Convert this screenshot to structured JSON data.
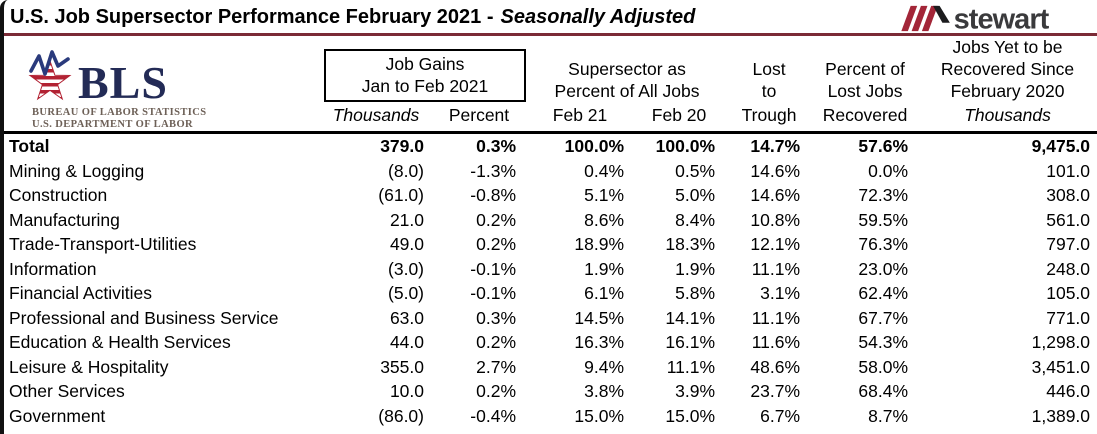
{
  "page": {
    "title_main": "U.S. Job Supersector Performance February 2021 -",
    "title_italic": "Seasonally Adjusted"
  },
  "stewart_logo": {
    "wordmark": "stewart"
  },
  "bls_logo": {
    "acronym": "BLS",
    "dept_line1": "BUREAU OF LABOR STATISTICS",
    "dept_line2": "U.S. DEPARTMENT OF LABOR"
  },
  "colors": {
    "title_rule_maroon": "#7b2a36",
    "stewart_red": "#a32638",
    "stewart_text": "#3a3a3c",
    "bls_navy": "#232b56",
    "bls_star_red": "#b22233",
    "bls_zigzag_blue": "#2a3a7c",
    "table_text": "#000000"
  },
  "table": {
    "group_headers": {
      "job_gains_line1": "Job Gains",
      "job_gains_line2": "Jan to Feb 2021",
      "supersector_line1": "Supersector as",
      "supersector_line2": "Percent of All Jobs",
      "lost_line1": "Lost",
      "lost_line2": "to",
      "pct_recovered_line1": "Percent of",
      "pct_recovered_line2": "Lost Jobs",
      "yet_line1": "Jobs Yet to be",
      "yet_line2": "Recovered Since",
      "yet_line3": "February 2020"
    },
    "sub_headers": {
      "thousands": "Thousands",
      "percent": "Percent",
      "feb21": "Feb 21",
      "feb20": "Feb 20",
      "trough": "Trough",
      "recovered": "Recovered",
      "yet_thousands": "Thousands"
    },
    "rows": [
      {
        "sector": "Total",
        "bold": true,
        "thousands": "379.0",
        "percent": "0.3%",
        "feb21": "100.0%",
        "feb20": "100.0%",
        "trough": "14.7%",
        "recovered": "57.6%",
        "yet": "9,475.0"
      },
      {
        "sector": "Mining & Logging",
        "bold": false,
        "thousands": "(8.0)",
        "percent": "-1.3%",
        "feb21": "0.4%",
        "feb20": "0.5%",
        "trough": "14.6%",
        "recovered": "0.0%",
        "yet": "101.0"
      },
      {
        "sector": "Construction",
        "bold": false,
        "thousands": "(61.0)",
        "percent": "-0.8%",
        "feb21": "5.1%",
        "feb20": "5.0%",
        "trough": "14.6%",
        "recovered": "72.3%",
        "yet": "308.0"
      },
      {
        "sector": "Manufacturing",
        "bold": false,
        "thousands": "21.0",
        "percent": "0.2%",
        "feb21": "8.6%",
        "feb20": "8.4%",
        "trough": "10.8%",
        "recovered": "59.5%",
        "yet": "561.0"
      },
      {
        "sector": "Trade-Transport-Utilities",
        "bold": false,
        "thousands": "49.0",
        "percent": "0.2%",
        "feb21": "18.9%",
        "feb20": "18.3%",
        "trough": "12.1%",
        "recovered": "76.3%",
        "yet": "797.0"
      },
      {
        "sector": "Information",
        "bold": false,
        "thousands": "(3.0)",
        "percent": "-0.1%",
        "feb21": "1.9%",
        "feb20": "1.9%",
        "trough": "11.1%",
        "recovered": "23.0%",
        "yet": "248.0"
      },
      {
        "sector": "Financial Activities",
        "bold": false,
        "thousands": "(5.0)",
        "percent": "-0.1%",
        "feb21": "6.1%",
        "feb20": "5.8%",
        "trough": "3.1%",
        "recovered": "62.4%",
        "yet": "105.0"
      },
      {
        "sector": "Professional and Business Service",
        "bold": false,
        "thousands": "63.0",
        "percent": "0.3%",
        "feb21": "14.5%",
        "feb20": "14.1%",
        "trough": "11.1%",
        "recovered": "67.7%",
        "yet": "771.0"
      },
      {
        "sector": "Education & Health Services",
        "bold": false,
        "thousands": "44.0",
        "percent": "0.2%",
        "feb21": "16.3%",
        "feb20": "16.1%",
        "trough": "11.6%",
        "recovered": "54.3%",
        "yet": "1,298.0"
      },
      {
        "sector": "Leisure & Hospitality",
        "bold": false,
        "thousands": "355.0",
        "percent": "2.7%",
        "feb21": "9.4%",
        "feb20": "11.1%",
        "trough": "48.6%",
        "recovered": "58.0%",
        "yet": "3,451.0"
      },
      {
        "sector": "Other Services",
        "bold": false,
        "thousands": "10.0",
        "percent": "0.2%",
        "feb21": "3.8%",
        "feb20": "3.9%",
        "trough": "23.7%",
        "recovered": "68.4%",
        "yet": "446.0"
      },
      {
        "sector": "Government",
        "bold": false,
        "thousands": "(86.0)",
        "percent": "-0.4%",
        "feb21": "15.0%",
        "feb20": "15.0%",
        "trough": "6.7%",
        "recovered": "8.7%",
        "yet": "1,389.0"
      }
    ]
  },
  "chart_data": {
    "type": "table",
    "title": "U.S. Job Supersector Performance February 2021 - Seasonally Adjusted",
    "column_groups": [
      "Job Gains Jan to Feb 2021 (Thousands)",
      "Job Gains Jan to Feb 2021 (Percent)",
      "Supersector as Percent of All Jobs Feb 21",
      "Supersector as Percent of All Jobs Feb 20",
      "Lost to Trough",
      "Percent of Lost Jobs Recovered",
      "Jobs Yet to be Recovered Since February 2020 (Thousands)"
    ],
    "row_header": "Supersector",
    "rows": [
      [
        "Total",
        379.0,
        0.3,
        100.0,
        100.0,
        14.7,
        57.6,
        9475.0
      ],
      [
        "Mining & Logging",
        -8.0,
        -1.3,
        0.4,
        0.5,
        14.6,
        0.0,
        101.0
      ],
      [
        "Construction",
        -61.0,
        -0.8,
        5.1,
        5.0,
        14.6,
        72.3,
        308.0
      ],
      [
        "Manufacturing",
        21.0,
        0.2,
        8.6,
        8.4,
        10.8,
        59.5,
        561.0
      ],
      [
        "Trade-Transport-Utilities",
        49.0,
        0.2,
        18.9,
        18.3,
        12.1,
        76.3,
        797.0
      ],
      [
        "Information",
        -3.0,
        -0.1,
        1.9,
        1.9,
        11.1,
        23.0,
        248.0
      ],
      [
        "Financial Activities",
        -5.0,
        -0.1,
        6.1,
        5.8,
        3.1,
        62.4,
        105.0
      ],
      [
        "Professional and Business Service",
        63.0,
        0.3,
        14.5,
        14.1,
        11.1,
        67.7,
        771.0
      ],
      [
        "Education & Health Services",
        44.0,
        0.2,
        16.3,
        16.1,
        11.6,
        54.3,
        1298.0
      ],
      [
        "Leisure & Hospitality",
        355.0,
        2.7,
        9.4,
        11.1,
        48.6,
        58.0,
        3451.0
      ],
      [
        "Other Services",
        10.0,
        0.2,
        3.8,
        3.9,
        23.7,
        68.4,
        446.0
      ],
      [
        "Government",
        -86.0,
        -0.4,
        15.0,
        15.0,
        6.7,
        8.7,
        1389.0
      ]
    ]
  }
}
